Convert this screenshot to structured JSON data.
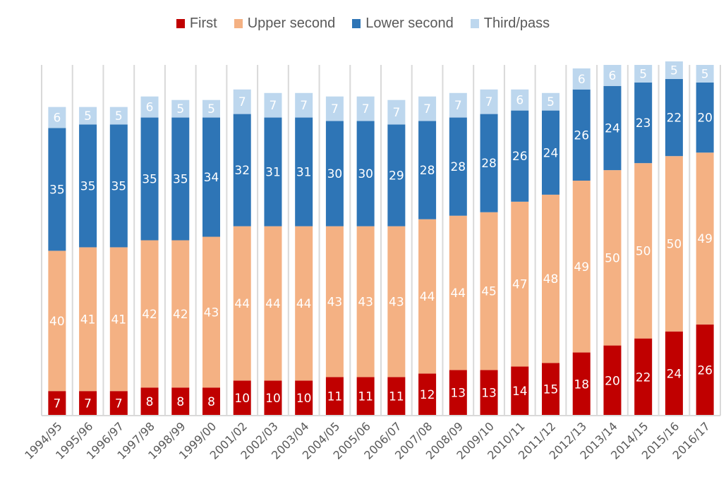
{
  "chart_data": {
    "type": "bar",
    "stacked": true,
    "title": "",
    "xlabel": "",
    "ylabel": "",
    "ylim": [
      0,
      100
    ],
    "grid": "vertical-category-separators",
    "legend_position": "top",
    "categories": [
      "1994/95",
      "1995/96",
      "1996/97",
      "1997/98",
      "1998/99",
      "1999/00",
      "2001/02",
      "2002/03",
      "2003/04",
      "2004/05",
      "2005/06",
      "2006/07",
      "2007/08",
      "2008/09",
      "2009/10",
      "2010/11",
      "2011/12",
      "2012/13",
      "2013/14",
      "2014/15",
      "2015/16",
      "2016/17"
    ],
    "series": [
      {
        "name": "First",
        "color": "#c00000",
        "values": [
          7,
          7,
          7,
          8,
          8,
          8,
          10,
          10,
          10,
          11,
          11,
          11,
          12,
          13,
          13,
          14,
          15,
          18,
          20,
          22,
          24,
          26
        ]
      },
      {
        "name": "Upper second",
        "color": "#f4b183",
        "values": [
          40,
          41,
          41,
          42,
          42,
          43,
          44,
          44,
          44,
          43,
          43,
          43,
          44,
          44,
          45,
          47,
          48,
          49,
          50,
          50,
          50,
          49
        ]
      },
      {
        "name": "Lower second",
        "color": "#2e75b6",
        "values": [
          35,
          35,
          35,
          35,
          35,
          34,
          32,
          31,
          31,
          30,
          30,
          29,
          28,
          28,
          28,
          26,
          24,
          26,
          24,
          23,
          22,
          20
        ]
      },
      {
        "name": "Third/pass",
        "color": "#bdd7ee",
        "values": [
          6,
          5,
          5,
          6,
          5,
          5,
          7,
          7,
          7,
          7,
          7,
          7,
          7,
          7,
          7,
          6,
          5,
          6,
          6,
          5,
          5,
          5
        ]
      }
    ],
    "data_labels": true
  }
}
